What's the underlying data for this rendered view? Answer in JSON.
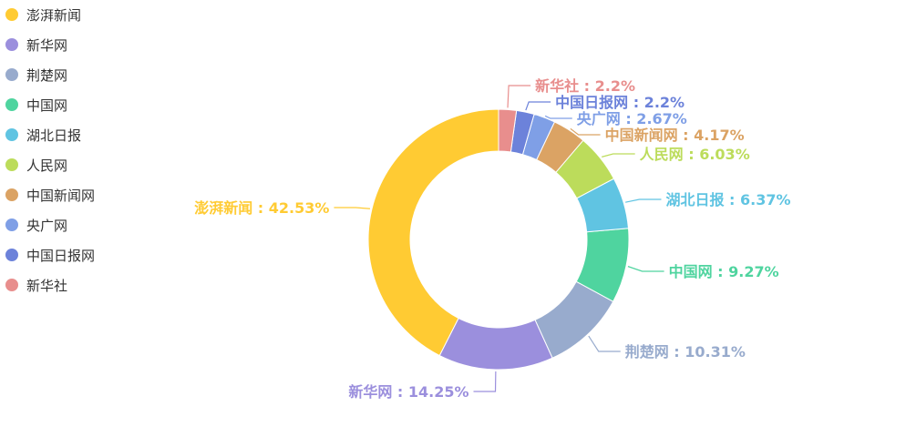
{
  "chart_data": {
    "type": "pie",
    "categories": [
      "澎湃新闻",
      "新华网",
      "荆楚网",
      "中国网",
      "湖北日报",
      "人民网",
      "中国新闻网",
      "央广网",
      "中国日报网",
      "新华社"
    ],
    "values": [
      42.53,
      14.25,
      10.31,
      9.27,
      6.37,
      6.03,
      4.17,
      2.67,
      2.2,
      2.2
    ],
    "colors": [
      "#ffcb33",
      "#9b8fdd",
      "#98abcd",
      "#4fd49f",
      "#60c4e2",
      "#bcdc5b",
      "#dba364",
      "#7f9fe6",
      "#6c82da",
      "#e88e8d"
    ],
    "labels": [
      "澎湃新闻 : 42.53%",
      "新华网 : 14.25%",
      "荆楚网 : 10.31%",
      "中国网 : 9.27%",
      "湖北日报 : 6.37%",
      "人民网 : 6.03%",
      "中国新闻网 : 4.17%",
      "央广网 : 2.67%",
      "中国日报网 : 2.2%",
      "新华社 : 2.2%"
    ],
    "legend_position": "left",
    "style": "donut"
  }
}
